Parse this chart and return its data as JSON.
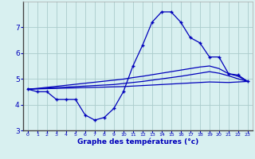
{
  "xlabel": "Graphe des températures (°c)",
  "bg_color": "#d8f0f0",
  "line_color": "#0000bb",
  "grid_color": "#aacccc",
  "hours": [
    0,
    1,
    2,
    3,
    4,
    5,
    6,
    7,
    8,
    9,
    10,
    11,
    12,
    13,
    14,
    15,
    16,
    17,
    18,
    19,
    20,
    21,
    22,
    23
  ],
  "temp_main": [
    4.6,
    4.5,
    4.5,
    4.2,
    4.2,
    4.2,
    3.6,
    3.4,
    3.5,
    3.85,
    4.5,
    5.5,
    6.3,
    7.2,
    7.6,
    7.6,
    7.2,
    6.6,
    6.4,
    5.85,
    5.85,
    5.2,
    5.15,
    4.9
  ],
  "temp_line1": [
    4.6,
    4.63,
    4.67,
    4.71,
    4.75,
    4.79,
    4.83,
    4.87,
    4.91,
    4.95,
    4.99,
    5.05,
    5.1,
    5.16,
    5.22,
    5.28,
    5.34,
    5.4,
    5.46,
    5.5,
    5.4,
    5.2,
    5.1,
    4.9
  ],
  "temp_line2": [
    4.6,
    4.62,
    4.64,
    4.66,
    4.68,
    4.7,
    4.72,
    4.74,
    4.76,
    4.78,
    4.82,
    4.86,
    4.9,
    4.95,
    5.0,
    5.05,
    5.1,
    5.16,
    5.22,
    5.28,
    5.22,
    5.12,
    5.0,
    4.9
  ],
  "temp_line3": [
    4.6,
    4.61,
    4.62,
    4.63,
    4.64,
    4.65,
    4.66,
    4.67,
    4.68,
    4.69,
    4.7,
    4.72,
    4.74,
    4.76,
    4.78,
    4.8,
    4.82,
    4.84,
    4.86,
    4.88,
    4.87,
    4.86,
    4.88,
    4.9
  ],
  "ylim": [
    3.0,
    8.0
  ],
  "yticks": [
    3,
    4,
    5,
    6,
    7
  ],
  "xticks": [
    0,
    1,
    2,
    3,
    4,
    5,
    6,
    7,
    8,
    9,
    10,
    11,
    12,
    13,
    14,
    15,
    16,
    17,
    18,
    19,
    20,
    21,
    22,
    23
  ]
}
